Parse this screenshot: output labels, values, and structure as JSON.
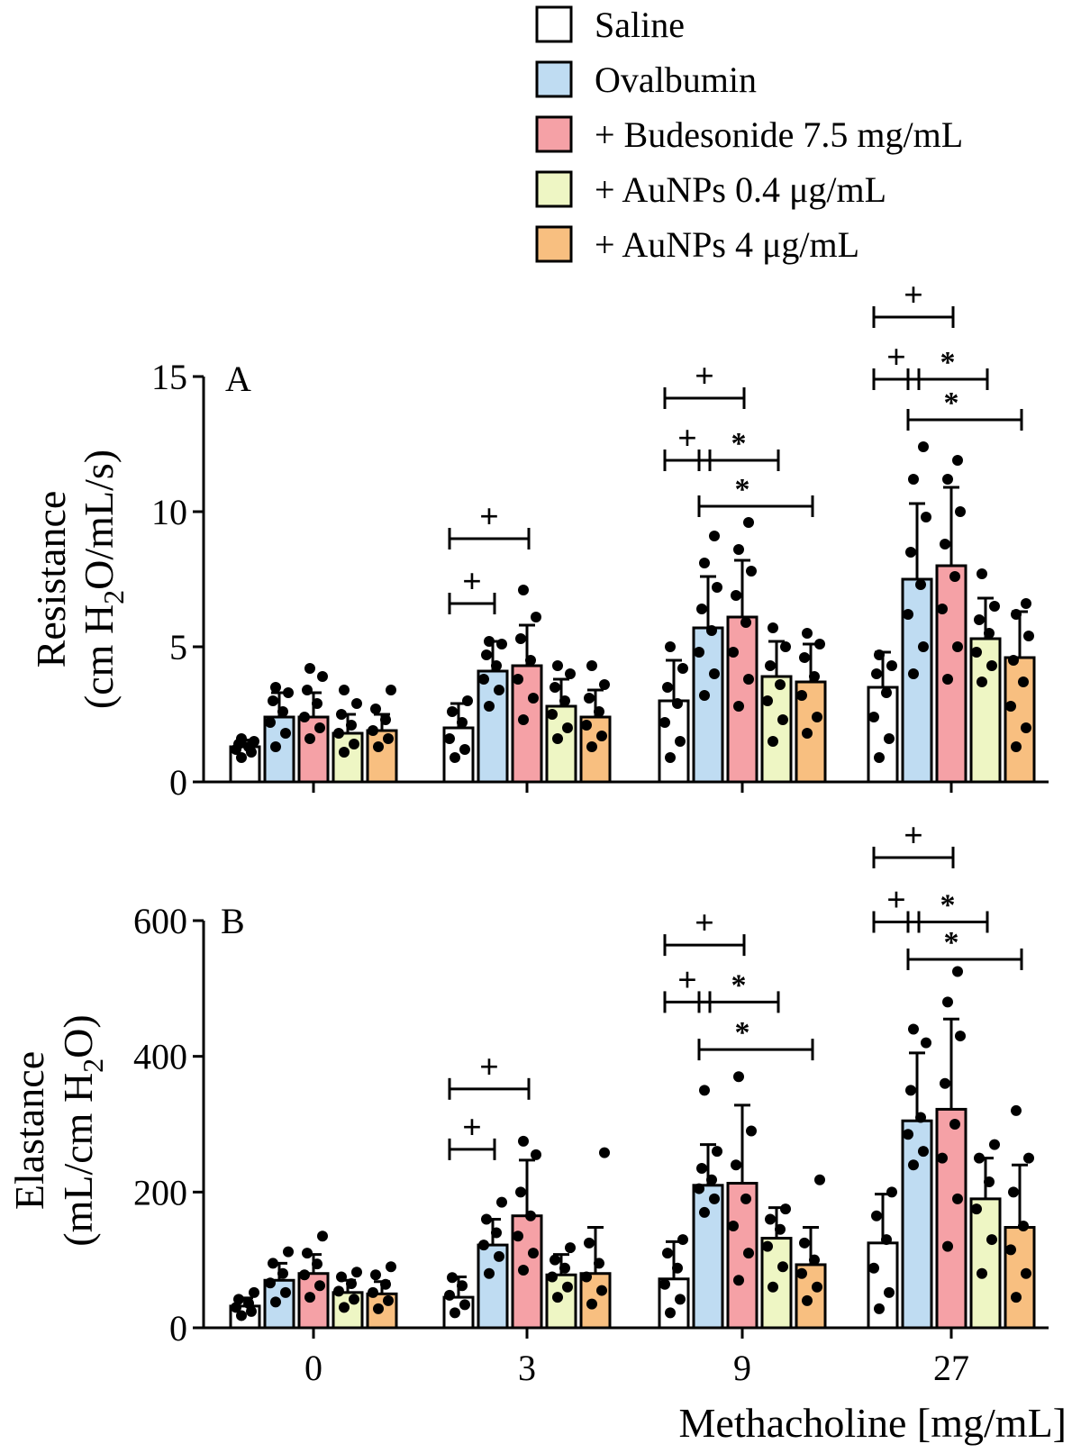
{
  "chart_data": {
    "type": "bar",
    "shared_xlabel": "Methacholine [mg/mL]",
    "categories": [
      "0",
      "3",
      "9",
      "27"
    ],
    "legend": [
      {
        "name": "Saline",
        "color": "#ffffff"
      },
      {
        "name": "Ovalbumin",
        "color": "#bfdcf2"
      },
      {
        "name": "+ Budesonide 7.5 mg/mL",
        "color": "#f5a1a6"
      },
      {
        "name": "+ AuNPs 0.4 μg/mL",
        "color": "#eef6c4"
      },
      {
        "name": "+ AuNPs 4 μg/mL",
        "color": "#f8bf80"
      }
    ],
    "legend_position": "top-right",
    "panels": [
      {
        "label": "A",
        "ylabel": "Resistance",
        "yunit_pre": "(cm H",
        "yunit_sub": "2",
        "yunit_post": "O/mL/s)",
        "ylim": [
          0,
          15
        ],
        "yticks": [
          "0",
          "5",
          "10",
          "15"
        ],
        "series": [
          {
            "name": "Saline",
            "values": [
              1.3,
              2.0,
              3.0,
              3.5
            ],
            "sd": [
              0.25,
              0.9,
              1.5,
              1.3
            ],
            "points": [
              [
                0.9,
                1.1,
                1.2,
                1.3,
                1.4,
                1.5,
                1.6
              ],
              [
                0.9,
                1.2,
                1.6,
                2.2,
                2.6,
                3.0
              ],
              [
                0.9,
                1.5,
                2.2,
                2.9,
                3.5,
                4.2,
                5.0
              ],
              [
                0.9,
                1.6,
                2.4,
                3.3,
                4.0,
                4.3,
                4.7
              ]
            ]
          },
          {
            "name": "Ovalbumin",
            "values": [
              2.4,
              4.1,
              5.7,
              7.5
            ],
            "sd": [
              0.9,
              1.1,
              1.9,
              2.8
            ],
            "points": [
              [
                1.3,
                1.8,
                2.2,
                2.6,
                3.0,
                3.3,
                3.5
              ],
              [
                2.8,
                3.4,
                3.8,
                4.3,
                4.7,
                5.1,
                5.2
              ],
              [
                3.2,
                4.0,
                4.8,
                5.6,
                6.4,
                7.2,
                8.1,
                9.1
              ],
              [
                4.0,
                5.0,
                6.2,
                7.3,
                8.5,
                9.8,
                11.2,
                12.4
              ]
            ]
          },
          {
            "name": "+ Budesonide 7.5 mg/mL",
            "values": [
              2.4,
              4.3,
              6.1,
              8.0
            ],
            "sd": [
              0.9,
              1.5,
              2.1,
              2.9
            ],
            "points": [
              [
                1.6,
                2.0,
                2.4,
                2.9,
                3.4,
                3.9,
                4.2
              ],
              [
                2.3,
                3.1,
                3.8,
                4.5,
                5.3,
                6.1,
                7.1
              ],
              [
                2.8,
                3.8,
                4.8,
                5.9,
                6.9,
                7.8,
                8.6,
                9.6
              ],
              [
                3.8,
                5.0,
                6.4,
                7.6,
                8.8,
                10.0,
                11.2,
                11.9
              ]
            ]
          },
          {
            "name": "+ AuNPs 0.4 μg/mL",
            "values": [
              1.8,
              2.8,
              3.9,
              5.3
            ],
            "sd": [
              0.7,
              1.0,
              1.3,
              1.5
            ],
            "points": [
              [
                1.1,
                1.4,
                1.8,
                2.1,
                2.5,
                2.9,
                3.4
              ],
              [
                1.6,
                2.0,
                2.5,
                3.0,
                3.5,
                4.0,
                4.3
              ],
              [
                1.5,
                2.3,
                3.0,
                3.6,
                4.3,
                5.0,
                5.7
              ],
              [
                3.7,
                4.3,
                4.8,
                5.5,
                6.0,
                6.5,
                7.7
              ]
            ]
          },
          {
            "name": "+ AuNPs 4 μg/mL",
            "values": [
              1.9,
              2.4,
              3.7,
              4.6
            ],
            "sd": [
              0.6,
              1.0,
              1.4,
              1.7
            ],
            "points": [
              [
                1.3,
                1.6,
                1.9,
                2.3,
                2.7,
                3.4
              ],
              [
                1.3,
                1.7,
                2.1,
                2.6,
                3.1,
                3.6,
                4.3
              ],
              [
                1.8,
                2.4,
                3.2,
                3.9,
                4.6,
                5.1,
                5.5
              ],
              [
                1.3,
                2.0,
                2.8,
                3.7,
                4.5,
                5.4,
                6.2,
                6.6
              ]
            ]
          }
        ],
        "annotations": [
          {
            "symbol": "+",
            "group": 1,
            "from": 0,
            "to": 2,
            "level": 9.0
          },
          {
            "symbol": "+",
            "group": 1,
            "from": 0,
            "to": 1,
            "level": 6.6
          },
          {
            "symbol": "+",
            "group": 2,
            "from": 0,
            "to": 2,
            "level": 14.2
          },
          {
            "symbol": "+",
            "group": 2,
            "from": 0,
            "to": 1,
            "level": 11.9
          },
          {
            "symbol": "*",
            "group": 2,
            "from": 1,
            "to": 3,
            "level": 11.9
          },
          {
            "symbol": "*",
            "group": 2,
            "from": 1,
            "to": 4,
            "level": 10.2
          },
          {
            "symbol": "+",
            "group": 3,
            "from": 0,
            "to": 2,
            "level": 17.2
          },
          {
            "symbol": "+",
            "group": 3,
            "from": 0,
            "to": 1,
            "level": 14.9
          },
          {
            "symbol": "*",
            "group": 3,
            "from": 1,
            "to": 3,
            "level": 14.9
          },
          {
            "symbol": "*",
            "group": 3,
            "from": 1,
            "to": 4,
            "level": 13.4
          }
        ]
      },
      {
        "label": "B",
        "ylabel": "Elastance",
        "yunit_pre": "(mL/cm H",
        "yunit_sub": "2",
        "yunit_post": "O)",
        "ylim": [
          0,
          600
        ],
        "yticks": [
          "0",
          "200",
          "400",
          "600"
        ],
        "series": [
          {
            "name": "Saline",
            "values": [
              32,
              45,
              72,
              125
            ],
            "sd": [
              12,
              30,
              55,
              72
            ],
            "points": [
              [
                18,
                24,
                30,
                36,
                42,
                52
              ],
              [
                22,
                34,
                48,
                62,
                74
              ],
              [
                22,
                42,
                64,
                88,
                110,
                130
              ],
              [
                28,
                52,
                88,
                130,
                165,
                200
              ]
            ]
          },
          {
            "name": "Ovalbumin",
            "values": [
              70,
              122,
              210,
              305
            ],
            "sd": [
              25,
              38,
              60,
              100
            ],
            "points": [
              [
                38,
                52,
                66,
                80,
                95,
                112
              ],
              [
                80,
                105,
                122,
                140,
                160,
                185
              ],
              [
                170,
                190,
                205,
                218,
                235,
                260,
                350
              ],
              [
                240,
                260,
                285,
                310,
                350,
                420,
                440
              ]
            ]
          },
          {
            "name": "+ Budesonide 7.5 mg/mL",
            "values": [
              80,
              165,
              213,
              322
            ],
            "sd": [
              28,
              82,
              115,
              133
            ],
            "points": [
              [
                45,
                62,
                78,
                94,
                110,
                135
              ],
              [
                85,
                110,
                135,
                165,
                200,
                255,
                275
              ],
              [
                70,
                110,
                150,
                190,
                240,
                290,
                370
              ],
              [
                120,
                190,
                250,
                300,
                360,
                430,
                480,
                525
              ]
            ]
          },
          {
            "name": "+ AuNPs 0.4 μg/mL",
            "values": [
              52,
              78,
              132,
              190
            ],
            "sd": [
              18,
              30,
              45,
              60
            ],
            "points": [
              [
                30,
                42,
                54,
                65,
                75,
                82
              ],
              [
                45,
                60,
                75,
                88,
                100,
                118
              ],
              [
                60,
                90,
                120,
                145,
                160,
                175
              ],
              [
                80,
                130,
                175,
                215,
                250,
                270
              ]
            ]
          },
          {
            "name": "+ AuNPs 4 μg/mL",
            "values": [
              50,
              80,
              93,
              148
            ],
            "sd": [
              18,
              68,
              55,
              92
            ],
            "points": [
              [
                28,
                40,
                52,
                64,
                78,
                90
              ],
              [
                35,
                55,
                75,
                95,
                125,
                258
              ],
              [
                40,
                60,
                80,
                100,
                125,
                218
              ],
              [
                45,
                80,
                115,
                150,
                200,
                250,
                320
              ]
            ]
          }
        ],
        "annotations": [
          {
            "symbol": "+",
            "group": 1,
            "from": 0,
            "to": 2,
            "level": 352
          },
          {
            "symbol": "+",
            "group": 1,
            "from": 0,
            "to": 1,
            "level": 263
          },
          {
            "symbol": "+",
            "group": 2,
            "from": 0,
            "to": 2,
            "level": 564
          },
          {
            "symbol": "+",
            "group": 2,
            "from": 0,
            "to": 1,
            "level": 480
          },
          {
            "symbol": "*",
            "group": 2,
            "from": 1,
            "to": 3,
            "level": 480
          },
          {
            "symbol": "*",
            "group": 2,
            "from": 1,
            "to": 4,
            "level": 410
          },
          {
            "symbol": "+",
            "group": 3,
            "from": 0,
            "to": 2,
            "level": 693
          },
          {
            "symbol": "+",
            "group": 3,
            "from": 0,
            "to": 1,
            "level": 598
          },
          {
            "symbol": "*",
            "group": 3,
            "from": 1,
            "to": 3,
            "level": 598
          },
          {
            "symbol": "*",
            "group": 3,
            "from": 1,
            "to": 4,
            "level": 543
          }
        ]
      }
    ]
  }
}
